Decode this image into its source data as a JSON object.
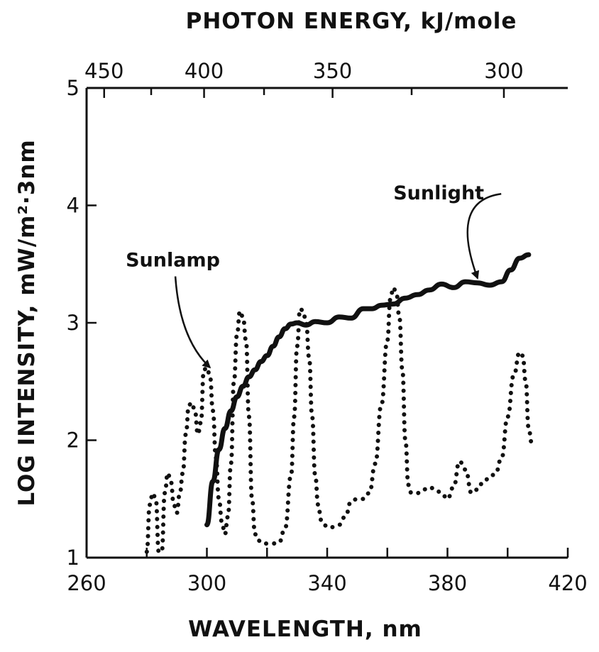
{
  "chart_data": {
    "type": "line",
    "xlabel": "WAVELENGTH, nm",
    "ylabel": "LOG INTENSITY, mW/m²·3nm",
    "top_xlabel": "PHOTON ENERGY, kJ/mole",
    "xlim": [
      260,
      420
    ],
    "ylim": [
      1,
      5
    ],
    "x_ticks": [
      260,
      280,
      300,
      320,
      340,
      360,
      380,
      400,
      420
    ],
    "x_tick_labels": [
      "260",
      "300",
      "340",
      "380",
      "420"
    ],
    "x_tick_label_values": [
      260,
      300,
      340,
      380,
      420
    ],
    "y_ticks": [
      1,
      2,
      3,
      4,
      5
    ],
    "y_tick_labels": [
      "1",
      "2",
      "3",
      "4",
      "5"
    ],
    "top_ticks": [
      {
        "label": "450",
        "value": 450
      },
      {
        "label": "400",
        "value": 400
      },
      {
        "label": "350",
        "value": 350
      },
      {
        "label": "300",
        "value": 300
      }
    ],
    "top_minor_ticks": [
      425,
      375,
      325
    ],
    "series": [
      {
        "name": "Sunlight",
        "style": "solid",
        "color": "#111111",
        "x": [
          300,
          302,
          304,
          306,
          308,
          310,
          312,
          314,
          316,
          318,
          320,
          322,
          324,
          326,
          328,
          330,
          333,
          336,
          340,
          344,
          348,
          352,
          355,
          358,
          362,
          366,
          370,
          374,
          378,
          382,
          386,
          390,
          394,
          398,
          401,
          404,
          407
        ],
        "y": [
          1.28,
          1.65,
          1.92,
          2.1,
          2.25,
          2.37,
          2.46,
          2.54,
          2.6,
          2.67,
          2.72,
          2.8,
          2.88,
          2.95,
          2.99,
          3.0,
          2.98,
          3.01,
          3.0,
          3.05,
          3.04,
          3.12,
          3.12,
          3.15,
          3.16,
          3.21,
          3.24,
          3.28,
          3.33,
          3.3,
          3.35,
          3.34,
          3.32,
          3.35,
          3.45,
          3.55,
          3.58
        ]
      },
      {
        "name": "Sunlamp",
        "style": "dotted",
        "color": "#111111",
        "x": [
          280,
          281,
          282,
          283,
          284,
          285,
          286,
          287,
          288,
          289,
          290,
          291,
          292,
          293,
          294,
          295,
          296,
          297,
          298,
          299,
          300,
          301,
          302,
          303,
          304,
          305,
          306,
          307,
          308,
          309,
          310,
          311,
          312,
          313,
          314,
          315,
          316,
          317,
          318,
          319,
          320,
          322,
          324,
          326,
          328,
          329,
          330,
          331,
          332,
          333,
          334,
          335,
          336,
          337,
          338,
          339,
          340,
          342,
          344,
          346,
          348,
          350,
          352,
          354,
          356,
          358,
          360,
          361,
          362,
          363,
          364,
          365,
          366,
          367,
          368,
          369,
          370,
          372,
          374,
          376,
          378,
          380,
          382,
          384,
          386,
          388,
          390,
          392,
          394,
          396,
          398,
          400,
          402,
          404,
          405,
          406,
          407,
          408
        ],
        "y": [
          1.05,
          1.45,
          1.55,
          1.5,
          1.05,
          1.05,
          1.55,
          1.72,
          1.65,
          1.45,
          1.38,
          1.55,
          1.72,
          2.05,
          2.3,
          2.32,
          2.25,
          2.05,
          2.15,
          2.6,
          2.62,
          2.55,
          2.25,
          1.85,
          1.5,
          1.3,
          1.2,
          1.35,
          1.8,
          2.5,
          2.9,
          3.1,
          3.05,
          2.85,
          2.2,
          1.5,
          1.2,
          1.15,
          1.13,
          1.12,
          1.12,
          1.12,
          1.13,
          1.25,
          1.7,
          2.2,
          2.8,
          3.12,
          3.1,
          3.0,
          2.7,
          2.2,
          1.7,
          1.45,
          1.32,
          1.28,
          1.26,
          1.26,
          1.28,
          1.35,
          1.48,
          1.5,
          1.5,
          1.55,
          1.8,
          2.3,
          2.85,
          3.2,
          3.3,
          3.25,
          3.05,
          2.6,
          2.0,
          1.62,
          1.55,
          1.55,
          1.55,
          1.58,
          1.6,
          1.58,
          1.55,
          1.5,
          1.6,
          1.82,
          1.75,
          1.55,
          1.58,
          1.65,
          1.68,
          1.72,
          1.85,
          2.2,
          2.55,
          2.75,
          2.72,
          2.5,
          2.1,
          1.98
        ]
      }
    ],
    "annotations": [
      {
        "text": "Sunlight",
        "points_to": "Sunlight",
        "text_x": 362,
        "text_y": 4.05,
        "target_x": 390,
        "target_y": 3.38
      },
      {
        "text": "Sunlamp",
        "points_to": "Sunlamp",
        "text_x": 273,
        "text_y": 3.48,
        "target_x": 301,
        "target_y": 2.62
      }
    ],
    "grid": false,
    "legend": "none"
  }
}
